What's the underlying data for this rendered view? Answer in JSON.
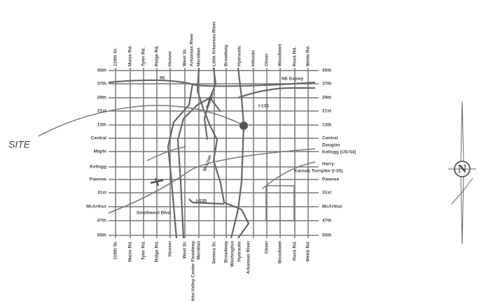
{
  "site_label": "SITE",
  "north_label": "N",
  "streets_top": [
    "119th St.",
    "Maize Rd.",
    "Tyler Rd.",
    "Ridge Rd.",
    "Hoover",
    "West St.",
    "Arkansas River",
    "Meridian",
    "Little Arkansas River",
    "Broadway",
    "Hydraulic",
    "Hillside",
    "Oliver",
    "Woodlawn",
    "Rock Rd.",
    "Webb Rd."
  ],
  "streets_bottom": [
    "119th St.",
    "Maize Rd.",
    "Tyler Rd.",
    "Ridge Rd.",
    "Hoover",
    "West St.",
    "Wichita-Valley Center Floodway",
    "Meridian",
    "Seneca St.",
    "Broadway",
    "Washington",
    "Hydraulic",
    "Arkansas River",
    "Oliver",
    "Woodlawn",
    "Rock Rd.",
    "Webb Rd."
  ],
  "streets_left": [
    "45th",
    "37th",
    "29th",
    "21st",
    "13th",
    "Central",
    "Maple",
    "Kellogg",
    "Pawnee",
    "31st",
    "McArthur",
    "47th",
    "55th"
  ],
  "streets_right": [
    "45th",
    "37th",
    "29th",
    "21st",
    "13th",
    "Central",
    "Douglas",
    "Kellogg (US-54)",
    "Harry",
    "Kansas Turnpike (I-35)",
    "Pawnee",
    "31st",
    "McArthur",
    "47th",
    "55th"
  ],
  "road_labels": [
    "96",
    "NE Expwy",
    "I-135",
    "Amidon",
    "McLean",
    "I-235",
    "Southwest Blvd."
  ]
}
